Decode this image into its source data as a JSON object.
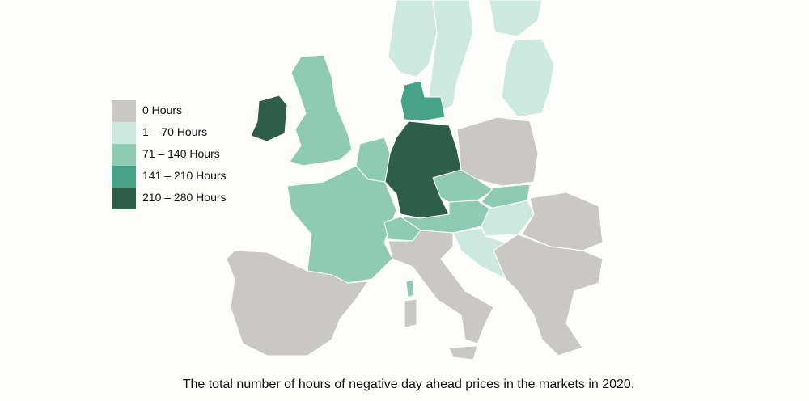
{
  "legend": {
    "items": [
      {
        "label": "0 Hours",
        "color": "#c9c8c5"
      },
      {
        "label": "1 – 70 Hours",
        "color": "#cde8de"
      },
      {
        "label": "71 – 140 Hours",
        "color": "#8ecab4"
      },
      {
        "label": "141 – 210 Hours",
        "color": "#47a387"
      },
      {
        "label": "210 – 280 Hours",
        "color": "#2f5d4b"
      }
    ]
  },
  "caption": "The total number of hours of negative day ahead prices in the markets in 2020."
}
